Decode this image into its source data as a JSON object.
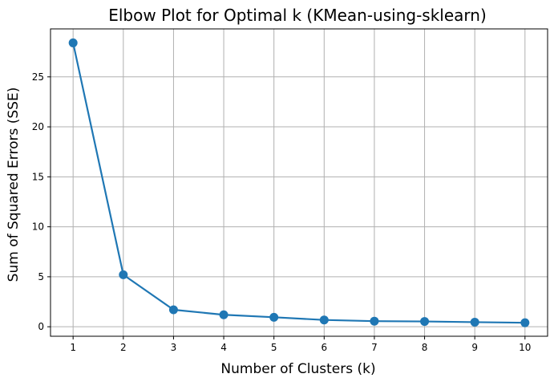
{
  "chart_data": {
    "type": "line",
    "title": "Elbow Plot for Optimal k (KMean-using-sklearn)",
    "xlabel": "Number of Clusters (k)",
    "ylabel": "Sum of Squared Errors (SSE)",
    "x": [
      1,
      2,
      3,
      4,
      5,
      6,
      7,
      8,
      9,
      10
    ],
    "series": [
      {
        "values": [
          28.4,
          5.2,
          1.7,
          1.2,
          0.95,
          0.68,
          0.56,
          0.53,
          0.46,
          0.4
        ]
      }
    ],
    "xlim": [
      0.55,
      10.45
    ],
    "ylim": [
      -0.95,
      29.8
    ],
    "xticks": [
      1,
      2,
      3,
      4,
      5,
      6,
      7,
      8,
      9,
      10
    ],
    "yticks": [
      0,
      5,
      10,
      15,
      20,
      25
    ],
    "grid": true,
    "line_color": "#1f77b4",
    "grid_color": "#b0b0b0",
    "marker": "circle"
  }
}
